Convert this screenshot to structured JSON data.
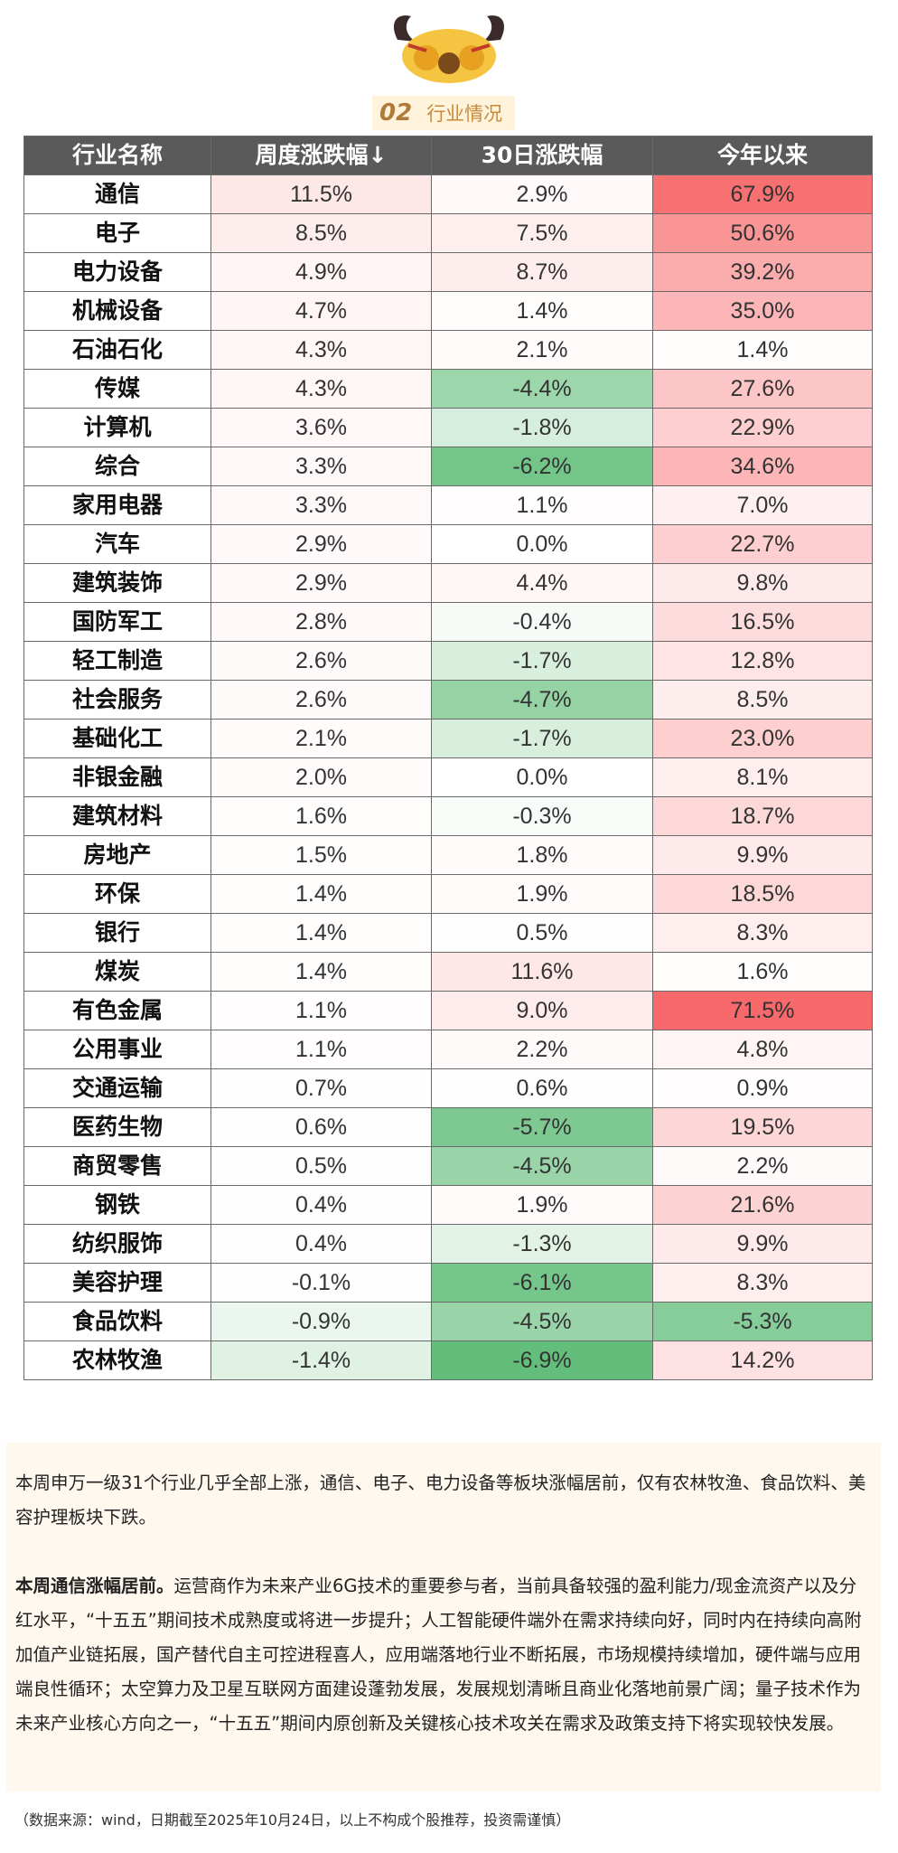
{
  "header": {
    "badge": "02",
    "title": "行业情况"
  },
  "table": {
    "columns": [
      "行业名称",
      "周度涨跌幅↓",
      "30日涨跌幅",
      "今年以来"
    ],
    "rows": [
      [
        "通信",
        "11.5%",
        "2.9%",
        "67.9%"
      ],
      [
        "电子",
        "8.5%",
        "7.5%",
        "50.6%"
      ],
      [
        "电力设备",
        "4.9%",
        "8.7%",
        "39.2%"
      ],
      [
        "机械设备",
        "4.7%",
        "1.4%",
        "35.0%"
      ],
      [
        "石油石化",
        "4.3%",
        "2.1%",
        "1.4%"
      ],
      [
        "传媒",
        "4.3%",
        "-4.4%",
        "27.6%"
      ],
      [
        "计算机",
        "3.6%",
        "-1.8%",
        "22.9%"
      ],
      [
        "综合",
        "3.3%",
        "-6.2%",
        "34.6%"
      ],
      [
        "家用电器",
        "3.3%",
        "1.1%",
        "7.0%"
      ],
      [
        "汽车",
        "2.9%",
        "0.0%",
        "22.7%"
      ],
      [
        "建筑装饰",
        "2.9%",
        "4.4%",
        "9.8%"
      ],
      [
        "国防军工",
        "2.8%",
        "-0.4%",
        "16.5%"
      ],
      [
        "轻工制造",
        "2.6%",
        "-1.7%",
        "12.8%"
      ],
      [
        "社会服务",
        "2.6%",
        "-4.7%",
        "8.5%"
      ],
      [
        "基础化工",
        "2.1%",
        "-1.7%",
        "23.0%"
      ],
      [
        "非银金融",
        "2.0%",
        "0.0%",
        "8.1%"
      ],
      [
        "建筑材料",
        "1.6%",
        "-0.3%",
        "18.7%"
      ],
      [
        "房地产",
        "1.5%",
        "1.8%",
        "9.9%"
      ],
      [
        "环保",
        "1.4%",
        "1.9%",
        "18.5%"
      ],
      [
        "银行",
        "1.4%",
        "0.5%",
        "8.3%"
      ],
      [
        "煤炭",
        "1.4%",
        "11.6%",
        "1.6%"
      ],
      [
        "有色金属",
        "1.1%",
        "9.0%",
        "71.5%"
      ],
      [
        "公用事业",
        "1.1%",
        "2.2%",
        "4.8%"
      ],
      [
        "交通运输",
        "0.7%",
        "0.6%",
        "0.9%"
      ],
      [
        "医药生物",
        "0.6%",
        "-5.7%",
        "19.5%"
      ],
      [
        "商贸零售",
        "0.5%",
        "-4.5%",
        "2.2%"
      ],
      [
        "钢铁",
        "0.4%",
        "1.9%",
        "21.6%"
      ],
      [
        "纺织服饰",
        "0.4%",
        "-1.3%",
        "9.9%"
      ],
      [
        "美容护理",
        "-0.1%",
        "-6.1%",
        "8.3%"
      ],
      [
        "食品饮料",
        "-0.9%",
        "-4.5%",
        "-5.3%"
      ],
      [
        "农林牧渔",
        "-1.4%",
        "-6.9%",
        "14.2%"
      ]
    ]
  },
  "summary": {
    "paragraph1": "本周申万一级31个行业几乎全部上涨，通信、电子、电力设备等板块涨幅居前，仅有农林牧渔、食品饮料、美容护理板块下跌。",
    "paragraph2_lead": "本周通信涨幅居前。",
    "paragraph2_body": "运营商作为未来产业6G技术的重要参与者，当前具备较强的盈利能力/现金流资产以及分红水平，“十五五”期间技术成熟度或将进一步提升；人工智能硬件端外在需求持续向好，同时内在持续向高附加值产业链拓展，国产替代自主可控进程喜人，应用端落地行业不断拓展，市场规模持续增加，硬件端与应用端良性循环；太空算力及卫星互联网方面建设蓬勃发展，发展规划清晰且商业化落地前景广阔；量子技术作为未来产业核心方向之一，“十五五”期间内原创新及关键核心技术攻关在需求及政策支持下将实现较快发展。"
  },
  "footnote": "（数据来源：wind，日期截至2025年10月24日，以上不构成个股推荐，投资需谨慎）"
}
